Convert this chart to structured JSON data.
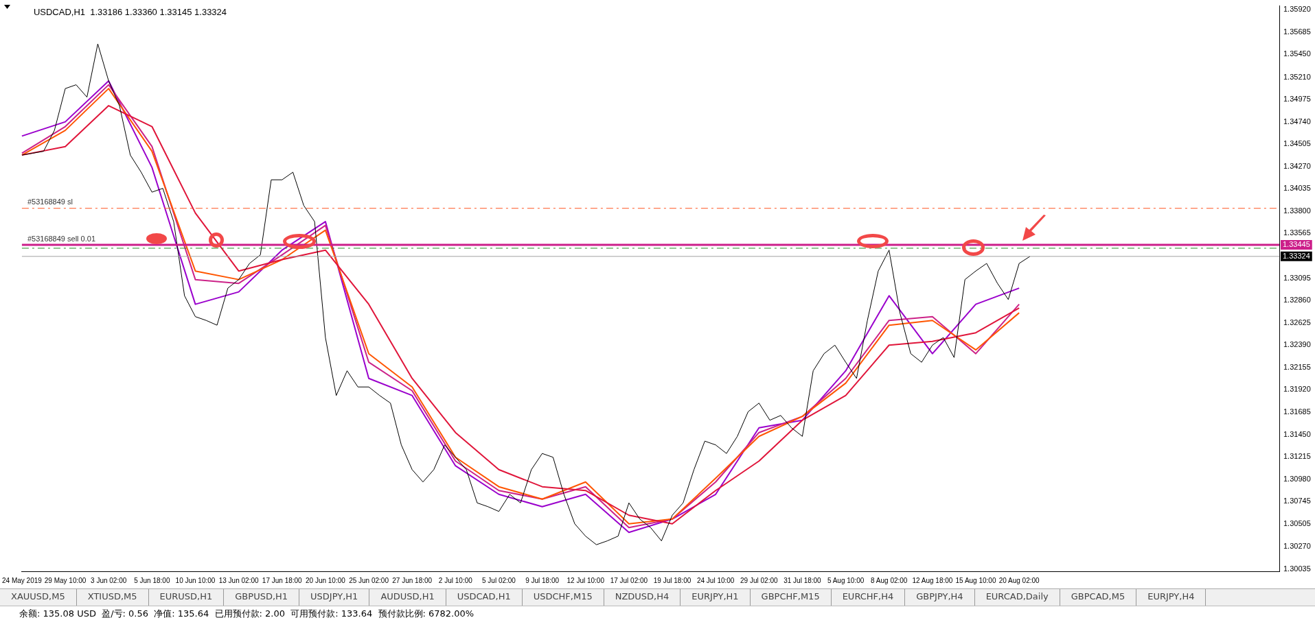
{
  "chart_data": {
    "type": "line",
    "title": "USDCAD,H1  1.33186 1.33360 1.33145 1.33324",
    "categories": [
      "24 May 2019",
      null,
      null,
      null,
      "29 May 10:00",
      null,
      null,
      null,
      "3 Jun 02:00",
      null,
      null,
      null,
      "5 Jun 18:00",
      null,
      null,
      null,
      "10 Jun 10:00",
      null,
      null,
      null,
      "13 Jun 02:00",
      null,
      null,
      null,
      "17 Jun 18:00",
      null,
      null,
      null,
      "20 Jun 10:00",
      null,
      null,
      null,
      "25 Jun 02:00",
      null,
      null,
      null,
      "27 Jun 18:00",
      null,
      null,
      null,
      "2 Jul 10:00",
      null,
      null,
      null,
      "5 Jul 02:00",
      null,
      null,
      null,
      "9 Jul 18:00",
      null,
      null,
      null,
      "12 Jul 10:00",
      null,
      null,
      null,
      "17 Jul 02:00",
      null,
      null,
      null,
      "19 Jul 18:00",
      null,
      null,
      null,
      "24 Jul 10:00",
      null,
      null,
      null,
      "29 Jul 02:00",
      null,
      null,
      null,
      "31 Jul 18:00",
      null,
      null,
      null,
      "5 Aug 10:00",
      null,
      null,
      null,
      "8 Aug 02:00",
      null,
      null,
      null,
      "12 Aug 18:00",
      null,
      null,
      null,
      "15 Aug 10:00",
      null,
      null,
      null,
      "20 Aug 02:00",
      null,
      null,
      null,
      null,
      null,
      null,
      null,
      null,
      null,
      null,
      null,
      null,
      null,
      null,
      null,
      null,
      null,
      null,
      null,
      null,
      null,
      null,
      null,
      null
    ],
    "series": [
      {
        "color": "#000000",
        "values": [
          1.3439,
          1.3441,
          1.3443,
          1.3465,
          1.3509,
          1.3513,
          1.35,
          1.3556,
          1.3517,
          1.3491,
          1.3439,
          1.3421,
          1.34,
          1.3404,
          1.3369,
          1.3291,
          1.3269,
          1.3265,
          1.326,
          1.3299,
          1.3308,
          1.3325,
          1.3334,
          1.3413,
          1.3413,
          1.3421,
          1.3386,
          1.3369,
          1.3247,
          1.3186,
          1.3212,
          1.3195,
          1.3195,
          1.3186,
          1.3178,
          1.3134,
          1.3108,
          1.3095,
          1.3108,
          1.3134,
          1.3121,
          1.3108,
          1.3073,
          1.3069,
          1.3064,
          1.3082,
          1.3073,
          1.3108,
          1.3125,
          1.3121,
          1.3082,
          1.3051,
          1.3038,
          1.3029,
          1.3033,
          1.3038,
          1.3073,
          1.3056,
          1.3047,
          1.3033,
          1.306,
          1.3073,
          1.3108,
          1.3138,
          1.3134,
          1.3125,
          1.3143,
          1.3169,
          1.3178,
          1.316,
          1.3165,
          1.3152,
          1.3143,
          1.3212,
          1.323,
          1.3239,
          1.3221,
          1.3204,
          1.3265,
          1.3317,
          1.3339,
          1.3273,
          1.323,
          1.3221,
          1.3239,
          1.3247,
          1.3226,
          1.3308,
          1.3317,
          1.3325,
          1.3304,
          1.3287,
          1.3325,
          1.33324,
          null,
          null,
          null,
          null,
          null,
          null,
          null,
          null,
          null,
          null,
          null,
          null,
          null,
          null,
          null,
          null,
          null,
          null,
          null,
          null,
          null,
          null,
          null
        ]
      },
      {
        "color": "#e0153a",
        "x": [
          "24 May 2019",
          "29 May 10:00",
          "3 Jun 02:00",
          "5 Jun 18:00",
          "10 Jun 10:00",
          "13 Jun 02:00",
          "17 Jun 18:00",
          "20 Jun 10:00",
          "25 Jun 02:00",
          "27 Jun 18:00",
          "2 Jul 10:00",
          "5 Jul 02:00",
          "9 Jul 18:00",
          "12 Jul 10:00",
          "17 Jul 02:00",
          "19 Jul 18:00",
          "24 Jul 10:00",
          "29 Jul 02:00",
          "31 Jul 18:00",
          "5 Aug 10:00",
          "8 Aug 02:00",
          "12 Aug 18:00",
          "15 Aug 10:00",
          "20 Aug 02:00"
        ],
        "values": [
          1.3439,
          1.3448,
          1.3491,
          1.3469,
          1.3378,
          1.3317,
          1.3329,
          1.3339,
          1.3282,
          1.3204,
          1.3147,
          1.3108,
          1.309,
          1.3086,
          1.306,
          1.3051,
          1.3086,
          1.3117,
          1.316,
          1.3186,
          1.3239,
          1.3243,
          1.3252,
          1.3278
        ]
      },
      {
        "color": "#ff5500",
        "x": [
          "24 May 2019",
          "29 May 10:00",
          "3 Jun 02:00",
          "5 Jun 18:00",
          "10 Jun 10:00",
          "13 Jun 02:00",
          "17 Jun 18:00",
          "20 Jun 10:00",
          "25 Jun 02:00",
          "27 Jun 18:00",
          "2 Jul 10:00",
          "5 Jul 02:00",
          "9 Jul 18:00",
          "12 Jul 10:00",
          "17 Jul 02:00",
          "19 Jul 18:00",
          "24 Jul 10:00",
          "29 Jul 02:00",
          "31 Jul 18:00",
          "5 Aug 10:00",
          "8 Aug 02:00",
          "12 Aug 18:00",
          "15 Aug 10:00",
          "20 Aug 02:00"
        ],
        "values": [
          1.3439,
          1.3465,
          1.3509,
          1.3443,
          1.3317,
          1.3308,
          1.3329,
          1.336,
          1.323,
          1.3195,
          1.3121,
          1.309,
          1.3077,
          1.3095,
          1.3051,
          1.3056,
          1.3099,
          1.3143,
          1.3164,
          1.3199,
          1.326,
          1.3265,
          1.3234,
          1.3273
        ]
      },
      {
        "color": "#cc2288",
        "x": [
          "24 May 2019",
          "29 May 10:00",
          "3 Jun 02:00",
          "5 Jun 18:00",
          "10 Jun 10:00",
          "13 Jun 02:00",
          "17 Jun 18:00",
          "20 Jun 10:00",
          "25 Jun 02:00",
          "27 Jun 18:00",
          "2 Jul 10:00",
          "5 Jul 02:00",
          "9 Jul 18:00",
          "12 Jul 10:00",
          "17 Jul 02:00",
          "19 Jul 18:00",
          "24 Jul 10:00",
          "29 Jul 02:00",
          "31 Jul 18:00",
          "5 Aug 10:00",
          "8 Aug 02:00",
          "12 Aug 18:00",
          "15 Aug 10:00",
          "20 Aug 02:00"
        ],
        "values": [
          1.3441,
          1.3469,
          1.3513,
          1.3448,
          1.3308,
          1.3304,
          1.3334,
          1.3365,
          1.3221,
          1.3191,
          1.3117,
          1.3086,
          1.3077,
          1.309,
          1.3047,
          1.3056,
          1.3095,
          1.3147,
          1.3164,
          1.3204,
          1.3265,
          1.3269,
          1.323,
          1.3282
        ]
      },
      {
        "color": "#9a00cc",
        "x": [
          "24 May 2019",
          "29 May 10:00",
          "3 Jun 02:00",
          "5 Jun 18:00",
          "10 Jun 10:00",
          "13 Jun 02:00",
          "17 Jun 18:00",
          "20 Jun 10:00",
          "25 Jun 02:00",
          "27 Jun 18:00",
          "2 Jul 10:00",
          "5 Jul 02:00",
          "9 Jul 18:00",
          "12 Jul 10:00",
          "17 Jul 02:00",
          "19 Jul 18:00",
          "24 Jul 10:00",
          "29 Jul 02:00",
          "31 Jul 18:00",
          "5 Aug 10:00",
          "8 Aug 02:00",
          "12 Aug 18:00",
          "15 Aug 10:00",
          "20 Aug 02:00"
        ],
        "values": [
          1.3459,
          1.3474,
          1.3517,
          1.3426,
          1.3282,
          1.3295,
          1.3339,
          1.3369,
          1.3204,
          1.3186,
          1.3112,
          1.3082,
          1.3069,
          1.3082,
          1.3042,
          1.3056,
          1.3082,
          1.3152,
          1.316,
          1.3212,
          1.3291,
          1.323,
          1.3282,
          1.3299
        ]
      }
    ],
    "ylim": [
      1.3001,
      1.3596
    ],
    "yticks": [
      {
        "value": 1.3592,
        "label": "1.35920"
      },
      {
        "value": 1.35685,
        "label": "1.35685"
      },
      {
        "value": 1.3545,
        "label": "1.35450"
      },
      {
        "value": 1.3521,
        "label": "1.35210"
      },
      {
        "value": 1.34975,
        "label": "1.34975"
      },
      {
        "value": 1.3474,
        "label": "1.34740"
      },
      {
        "value": 1.34505,
        "label": "1.34505"
      },
      {
        "value": 1.3427,
        "label": "1.34270"
      },
      {
        "value": 1.34035,
        "label": "1.34035"
      },
      {
        "value": 1.338,
        "label": "1.33800"
      },
      {
        "value": 1.33565,
        "label": "1.33565"
      },
      {
        "value": 1.33095,
        "label": "1.33095"
      },
      {
        "value": 1.3286,
        "label": "1.32860"
      },
      {
        "value": 1.32625,
        "label": "1.32625"
      },
      {
        "value": 1.3239,
        "label": "1.32390"
      },
      {
        "value": 1.32155,
        "label": "1.32155"
      },
      {
        "value": 1.3192,
        "label": "1.31920"
      },
      {
        "value": 1.31685,
        "label": "1.31685"
      },
      {
        "value": 1.3145,
        "label": "1.31450"
      },
      {
        "value": 1.31215,
        "label": "1.31215"
      },
      {
        "value": 1.3098,
        "label": "1.30980"
      },
      {
        "value": 1.30745,
        "label": "1.30745"
      },
      {
        "value": 1.30505,
        "label": "1.30505"
      },
      {
        "value": 1.3027,
        "label": "1.30270"
      },
      {
        "value": 1.30035,
        "label": "1.30035"
      }
    ],
    "ref_lines": [
      {
        "axis": "y",
        "value": 1.3383,
        "label": "#53168849 sl",
        "color": "#ff5522",
        "line_style": "dashed"
      },
      {
        "axis": "y",
        "value": 1.33445,
        "label": "1.33445",
        "color": "#cc1f8a",
        "line_style": "solid"
      },
      {
        "axis": "y",
        "value": 1.3341,
        "color": "#228822",
        "line_style": "dashed"
      },
      {
        "axis": "y",
        "value": 1.33324,
        "label": "1.33324",
        "color": "#a0a0a0",
        "line_style": "solid"
      }
    ],
    "annotations": [
      "XAUUSD,M5",
      "XTIUSD,M5",
      "EURUSD,H1",
      "GBPUSD,H1",
      "USDJPY,H1",
      "AUDUSD,H1",
      "USDCAD,H1",
      "USDCHF,M15",
      "NZDUSD,H4",
      "EURJPY,H1",
      "GBPCHF,M15",
      "EURCHF,H4",
      "GBPJPY,H4",
      "EURCAD,Daily",
      "GBPCAD,M5",
      "EURJPY,H4",
      "余额: 135.08 USD  盈/亏: 0.56  净值: 135.64  已用预付款: 2.00  可用预付款: 133.64  预付款比例: 6782.00%",
      {
        "text": "#53168849 sell 0.01",
        "y": 1.33445
      }
    ],
    "grid": false,
    "legend": false,
    "marker": "none"
  }
}
